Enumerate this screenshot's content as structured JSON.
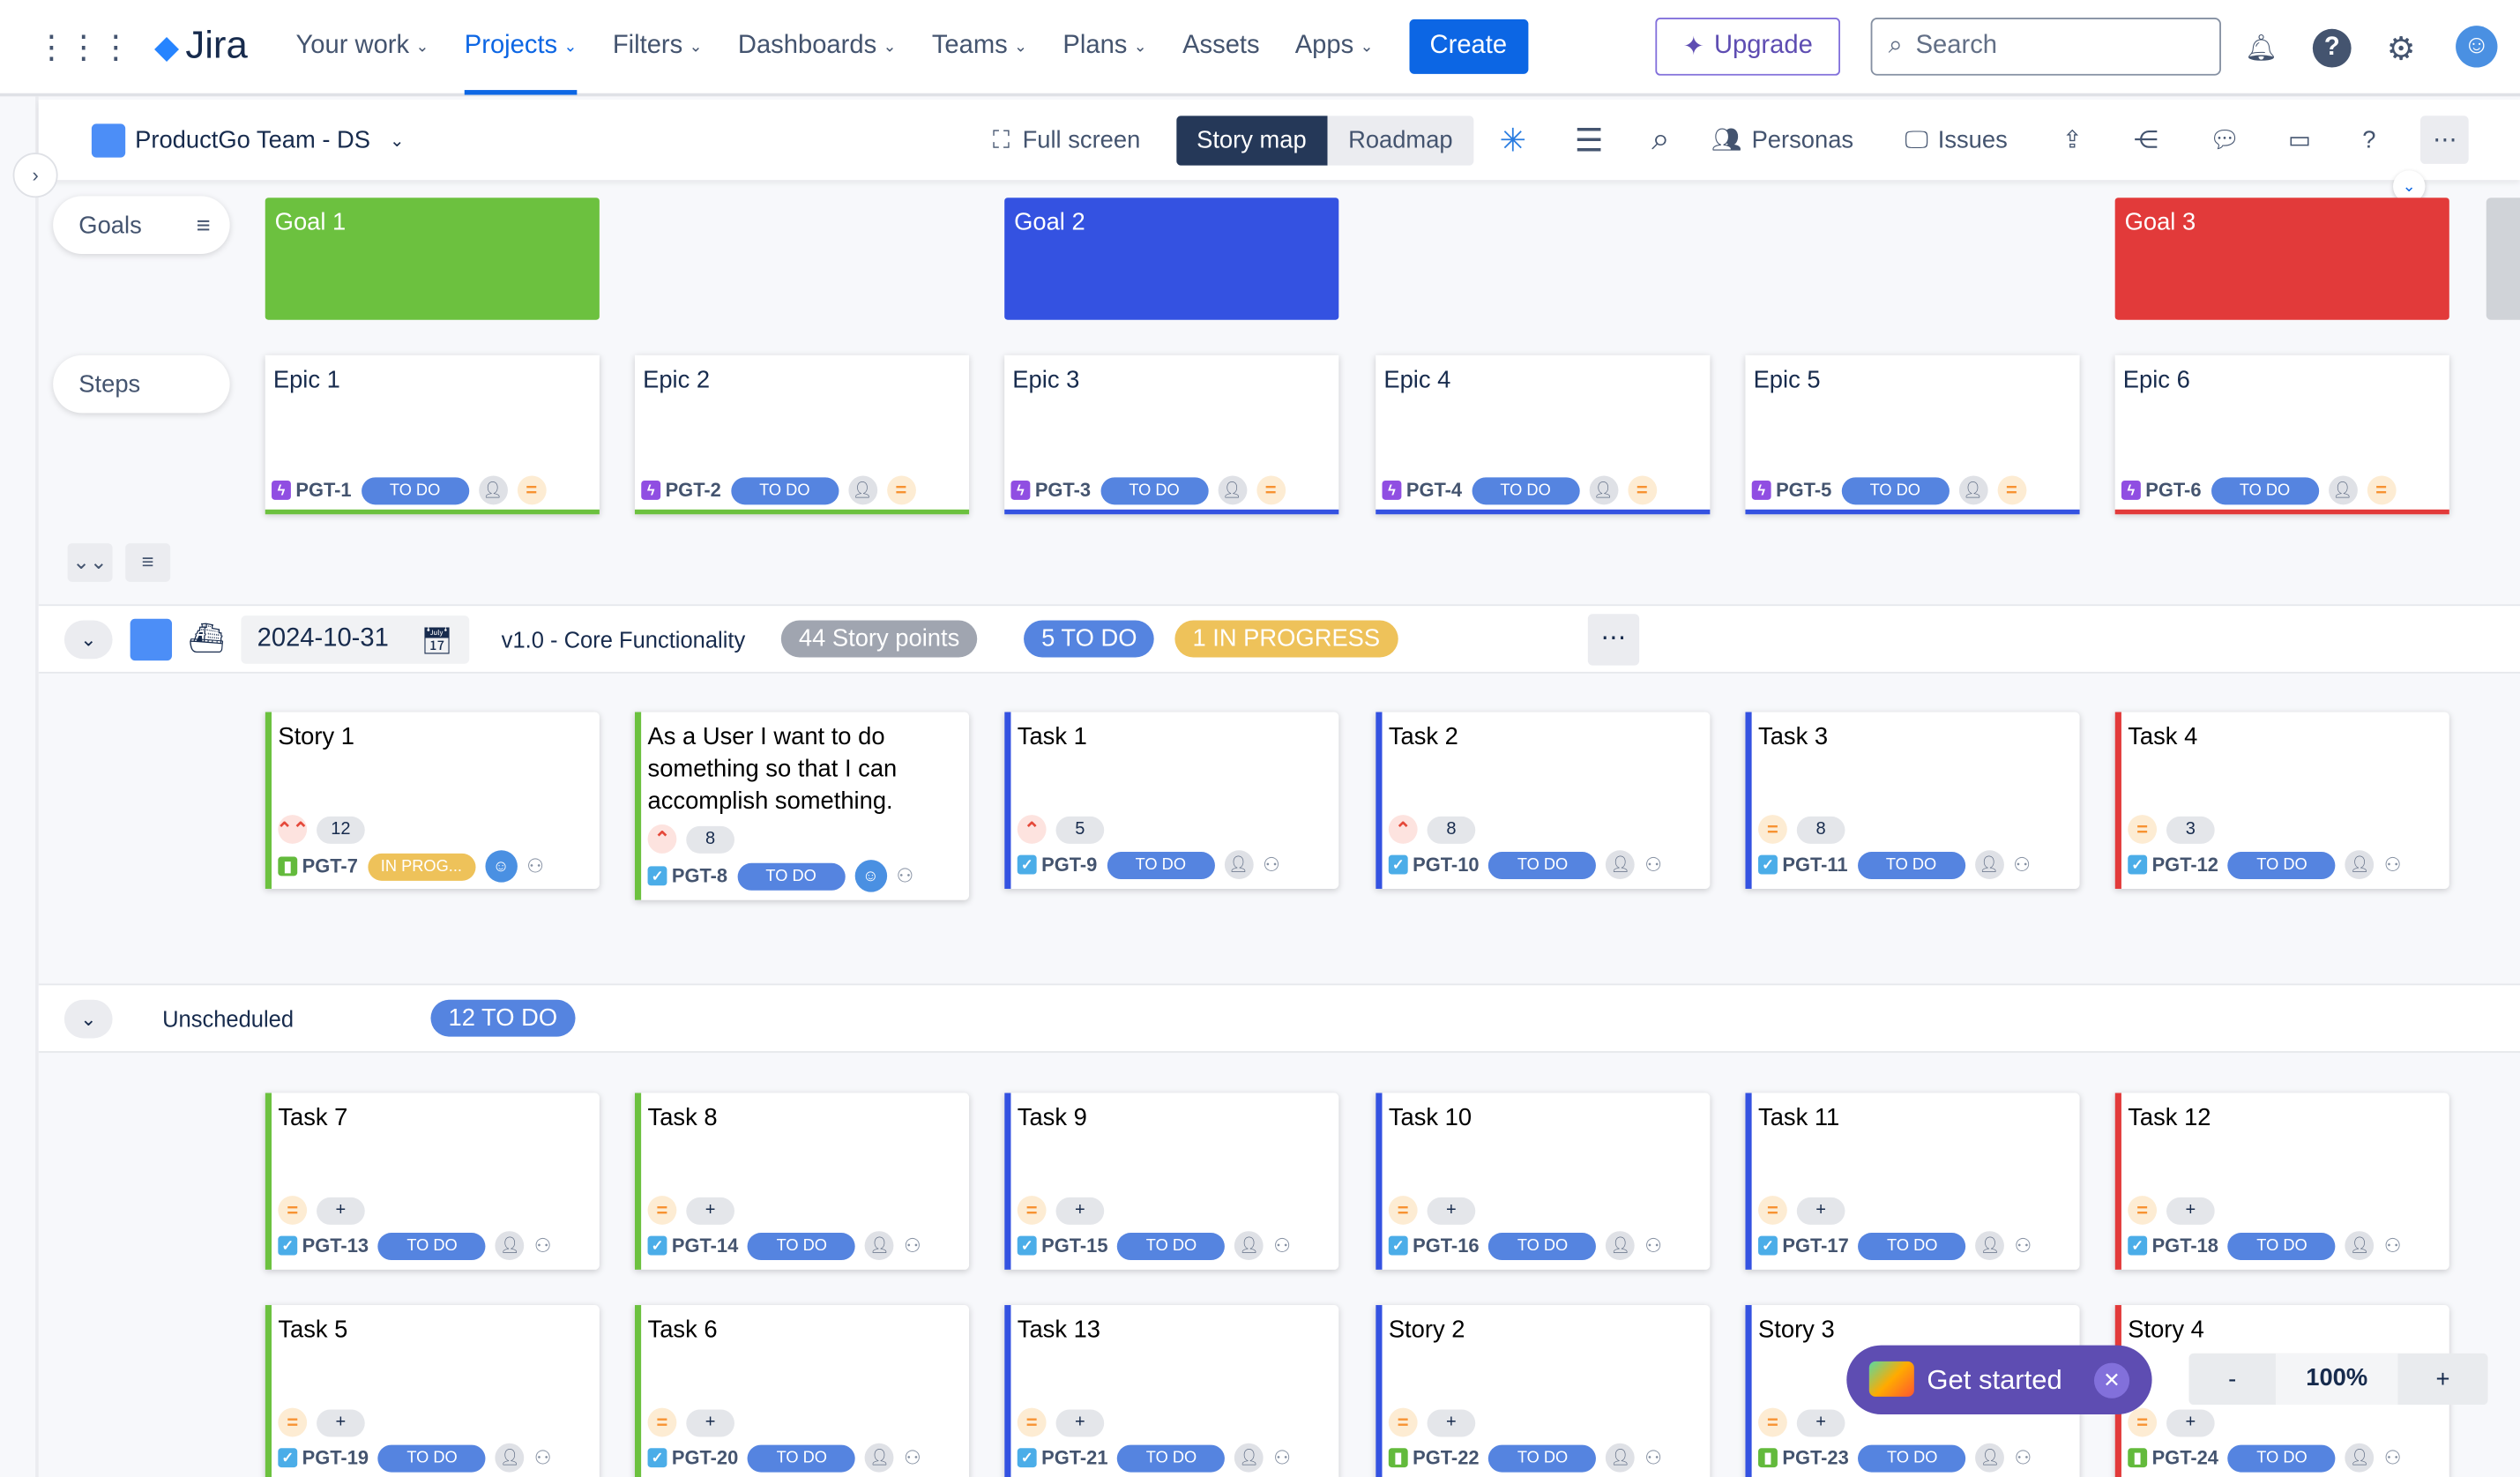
{
  "topnav": {
    "logo": "Jira",
    "items": [
      {
        "label": "Your work",
        "chev": true
      },
      {
        "label": "Projects",
        "chev": true,
        "active": true
      },
      {
        "label": "Filters",
        "chev": true
      },
      {
        "label": "Dashboards",
        "chev": true
      },
      {
        "label": "Teams",
        "chev": true
      },
      {
        "label": "Plans",
        "chev": true
      },
      {
        "label": "Assets",
        "chev": false
      },
      {
        "label": "Apps",
        "chev": true
      }
    ],
    "create": "Create",
    "upgrade": "Upgrade",
    "search_placeholder": "Search"
  },
  "toolbar": {
    "project": "ProductGo Team - DS",
    "fullscreen": "Full screen",
    "story_map": "Story map",
    "roadmap": "Roadmap",
    "personas": "Personas",
    "issues": "Issues"
  },
  "rows": {
    "goals": "Goals",
    "steps": "Steps"
  },
  "colors": {
    "green": "#6cc13f",
    "blue": "#3452e1",
    "red": "#e23a3a",
    "todo": "#5584e0",
    "inprogress": "#eec25a"
  },
  "goals": [
    {
      "label": "Goal 1",
      "col": 0,
      "color": "green"
    },
    {
      "label": "Goal 2",
      "col": 2,
      "color": "blue"
    },
    {
      "label": "Goal 3",
      "col": 5,
      "color": "red"
    }
  ],
  "column_colors": [
    "green",
    "green",
    "blue",
    "blue",
    "blue",
    "red"
  ],
  "epics": [
    {
      "title": "Epic 1",
      "key": "PGT-1",
      "status": "TO DO"
    },
    {
      "title": "Epic 2",
      "key": "PGT-2",
      "status": "TO DO"
    },
    {
      "title": "Epic 3",
      "key": "PGT-3",
      "status": "TO DO"
    },
    {
      "title": "Epic 4",
      "key": "PGT-4",
      "status": "TO DO"
    },
    {
      "title": "Epic 5",
      "key": "PGT-5",
      "status": "TO DO"
    },
    {
      "title": "Epic 6",
      "key": "PGT-6",
      "status": "TO DO"
    }
  ],
  "release": {
    "date": "2024-10-31",
    "name": "v1.0 - Core Functionality",
    "story_points": "44 Story points",
    "todo": "5 TO DO",
    "inprogress": "1 IN PROGRESS",
    "cards": [
      {
        "title": "Story 1",
        "priority": "highest",
        "points": "12",
        "key": "PGT-7",
        "type": "story",
        "status": "IN PROG...",
        "assignee": true
      },
      {
        "title": "As a User I want to do something so that I can accomplish something.",
        "priority": "high",
        "points": "8",
        "key": "PGT-8",
        "type": "task",
        "status": "TO DO",
        "assignee": true
      },
      {
        "title": "Task 1",
        "priority": "high",
        "points": "5",
        "key": "PGT-9",
        "type": "task",
        "status": "TO DO"
      },
      {
        "title": "Task 2",
        "priority": "high",
        "points": "8",
        "key": "PGT-10",
        "type": "task",
        "status": "TO DO"
      },
      {
        "title": "Task 3",
        "priority": "medium",
        "points": "8",
        "key": "PGT-11",
        "type": "task",
        "status": "TO DO"
      },
      {
        "title": "Task 4",
        "priority": "medium",
        "points": "3",
        "key": "PGT-12",
        "type": "task",
        "status": "TO DO"
      }
    ]
  },
  "unscheduled": {
    "label": "Unscheduled",
    "todo": "12 TO DO",
    "rows": [
      [
        {
          "title": "Task 7",
          "priority": "medium",
          "points": "+",
          "key": "PGT-13",
          "type": "task",
          "status": "TO DO"
        },
        {
          "title": "Task 8",
          "priority": "medium",
          "points": "+",
          "key": "PGT-14",
          "type": "task",
          "status": "TO DO"
        },
        {
          "title": "Task 9",
          "priority": "medium",
          "points": "+",
          "key": "PGT-15",
          "type": "task",
          "status": "TO DO"
        },
        {
          "title": "Task 10",
          "priority": "medium",
          "points": "+",
          "key": "PGT-16",
          "type": "task",
          "status": "TO DO"
        },
        {
          "title": "Task 11",
          "priority": "medium",
          "points": "+",
          "key": "PGT-17",
          "type": "task",
          "status": "TO DO"
        },
        {
          "title": "Task 12",
          "priority": "medium",
          "points": "+",
          "key": "PGT-18",
          "type": "task",
          "status": "TO DO"
        }
      ],
      [
        {
          "title": "Task 5",
          "priority": "medium",
          "points": "+",
          "key": "PGT-19",
          "type": "task",
          "status": "TO DO"
        },
        {
          "title": "Task 6",
          "priority": "medium",
          "points": "+",
          "key": "PGT-20",
          "type": "task",
          "status": "TO DO"
        },
        {
          "title": "Task 13",
          "priority": "medium",
          "points": "+",
          "key": "PGT-21",
          "type": "task",
          "status": "TO DO"
        },
        {
          "title": "Story 2",
          "priority": "medium",
          "points": "+",
          "key": "PGT-22",
          "type": "story",
          "status": "TO DO"
        },
        {
          "title": "Story 3",
          "priority": "medium",
          "points": "+",
          "key": "PGT-23",
          "type": "story",
          "status": "TO DO"
        },
        {
          "title": "Story 4",
          "priority": "medium",
          "points": "+",
          "key": "PGT-24",
          "type": "story",
          "status": "TO DO"
        }
      ]
    ]
  },
  "get_started": "Get started",
  "zoom": {
    "minus": "-",
    "value": "100%",
    "plus": "+"
  }
}
